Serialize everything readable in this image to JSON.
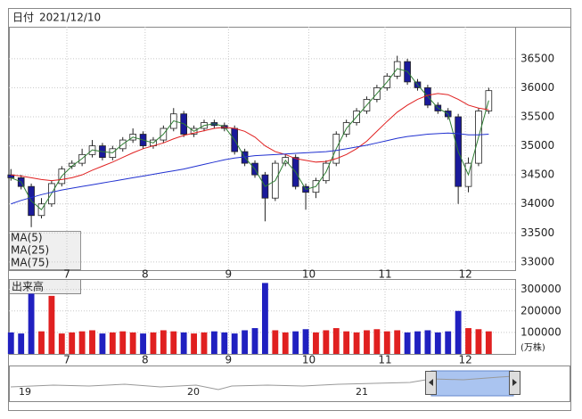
{
  "chart_data": {
    "type": "candlestick",
    "date_label": "日付",
    "date": "2021/12/10",
    "xlim": [
      -0.2,
      49.6
    ],
    "xticks": [
      {
        "value": 5.5,
        "label": "7"
      },
      {
        "value": 13.2,
        "label": "8"
      },
      {
        "value": 21.4,
        "label": "9"
      },
      {
        "value": 29.3,
        "label": "10"
      },
      {
        "value": 36.8,
        "label": "11"
      },
      {
        "value": 44.7,
        "label": "12"
      }
    ],
    "ylim": [
      32860,
      37050
    ],
    "yticks": [
      33000,
      33500,
      34000,
      34500,
      35000,
      35500,
      36000,
      36500
    ],
    "grid": true,
    "up_color": "#ffffff",
    "down_color": "#1a1a9a",
    "open": [
      34500,
      34450,
      34300,
      33800,
      34000,
      34350,
      34650,
      34700,
      34850,
      35000,
      34800,
      34950,
      35100,
      35200,
      35000,
      35100,
      35300,
      35550,
      35200,
      35300,
      35400,
      35350,
      35300,
      34900,
      34700,
      34500,
      34100,
      34700,
      34800,
      34300,
      34200,
      34400,
      34700,
      35200,
      35400,
      35600,
      35800,
      36000,
      36200,
      36450,
      36100,
      36000,
      35700,
      35600,
      35500,
      34300,
      34700,
      35600
    ],
    "high": [
      34600,
      34500,
      34350,
      34100,
      34400,
      34650,
      34750,
      34950,
      35100,
      35050,
      35000,
      35150,
      35300,
      35250,
      35150,
      35350,
      35650,
      35600,
      35350,
      35450,
      35450,
      35400,
      35350,
      34950,
      34750,
      34550,
      34750,
      34850,
      34850,
      34350,
      34450,
      34750,
      35250,
      35450,
      35650,
      35850,
      36050,
      36250,
      36550,
      36500,
      36150,
      36050,
      35750,
      35650,
      35550,
      34800,
      35650,
      36000
    ],
    "low": [
      34400,
      34250,
      33600,
      33750,
      33950,
      34300,
      34600,
      34650,
      34800,
      34750,
      34750,
      34900,
      35050,
      34950,
      34950,
      35050,
      35250,
      35150,
      35150,
      35250,
      35300,
      35250,
      34850,
      34650,
      34450,
      33700,
      34050,
      34650,
      34250,
      33900,
      34100,
      34350,
      34650,
      35150,
      35350,
      35550,
      35750,
      35950,
      36150,
      36050,
      35950,
      35650,
      35550,
      35450,
      34000,
      34200,
      34650,
      35550
    ],
    "close": [
      34450,
      34300,
      33800,
      34000,
      34350,
      34600,
      34700,
      34850,
      35000,
      34800,
      34950,
      35100,
      35200,
      35000,
      35100,
      35300,
      35550,
      35200,
      35300,
      35400,
      35350,
      35300,
      34900,
      34700,
      34500,
      34100,
      34700,
      34800,
      34300,
      34200,
      34400,
      34700,
      35200,
      35400,
      35600,
      35800,
      36000,
      36200,
      36450,
      36100,
      36000,
      35700,
      35600,
      35500,
      34300,
      34700,
      35600,
      35950
    ],
    "series": [
      {
        "name": "MA(5)",
        "color": "#2e7d32",
        "values": [
          34450,
          34380,
          34050,
          33900,
          34180,
          34480,
          34650,
          34780,
          34930,
          34900,
          34880,
          35030,
          35150,
          35100,
          35050,
          35200,
          35430,
          35380,
          35250,
          35350,
          35380,
          35330,
          35100,
          34800,
          34600,
          34300,
          34400,
          34750,
          34550,
          34250,
          34300,
          34550,
          34950,
          35300,
          35500,
          35700,
          35900,
          36100,
          36330,
          36280,
          36050,
          35850,
          35650,
          35550,
          34900,
          34500,
          35150,
          35780
        ]
      },
      {
        "name": "MA(25)",
        "color": "#e02020",
        "values": [
          34500,
          34480,
          34450,
          34420,
          34400,
          34420,
          34450,
          34500,
          34580,
          34650,
          34720,
          34800,
          34880,
          34950,
          35000,
          35050,
          35120,
          35180,
          35220,
          35260,
          35300,
          35320,
          35300,
          35250,
          35150,
          35000,
          34900,
          34850,
          34780,
          34750,
          34720,
          34730,
          34780,
          34850,
          34950,
          35080,
          35250,
          35420,
          35580,
          35700,
          35800,
          35870,
          35900,
          35880,
          35800,
          35700,
          35650,
          35620
        ]
      },
      {
        "name": "MA(75)",
        "color": "#2030d0",
        "values": [
          34000,
          34060,
          34110,
          34160,
          34200,
          34240,
          34270,
          34300,
          34330,
          34360,
          34390,
          34420,
          34450,
          34480,
          34510,
          34540,
          34570,
          34600,
          34640,
          34680,
          34720,
          34760,
          34790,
          34810,
          34830,
          34840,
          34850,
          34860,
          34870,
          34880,
          34890,
          34900,
          34920,
          34950,
          34980,
          35010,
          35050,
          35090,
          35130,
          35160,
          35180,
          35200,
          35210,
          35220,
          35210,
          35190,
          35190,
          35200
        ]
      }
    ],
    "volume": {
      "title": "出来高",
      "unit": "(万株)",
      "ylim": [
        0,
        340000
      ],
      "yticks": [
        100000,
        200000,
        300000
      ],
      "up_color": "#e02020",
      "down_color": "#2020c0",
      "values": [
        100000,
        95000,
        280000,
        105000,
        270000,
        95000,
        100000,
        105000,
        110000,
        95000,
        100000,
        105000,
        100000,
        95000,
        100000,
        110000,
        105000,
        100000,
        95000,
        100000,
        105000,
        100000,
        95000,
        110000,
        120000,
        330000,
        110000,
        100000,
        105000,
        115000,
        100000,
        110000,
        120000,
        105000,
        100000,
        110000,
        115000,
        105000,
        110000,
        100000,
        105000,
        110000,
        100000,
        105000,
        200000,
        120000,
        115000,
        105000
      ]
    },
    "navigator_labels": [
      "19",
      "20",
      "21"
    ]
  }
}
